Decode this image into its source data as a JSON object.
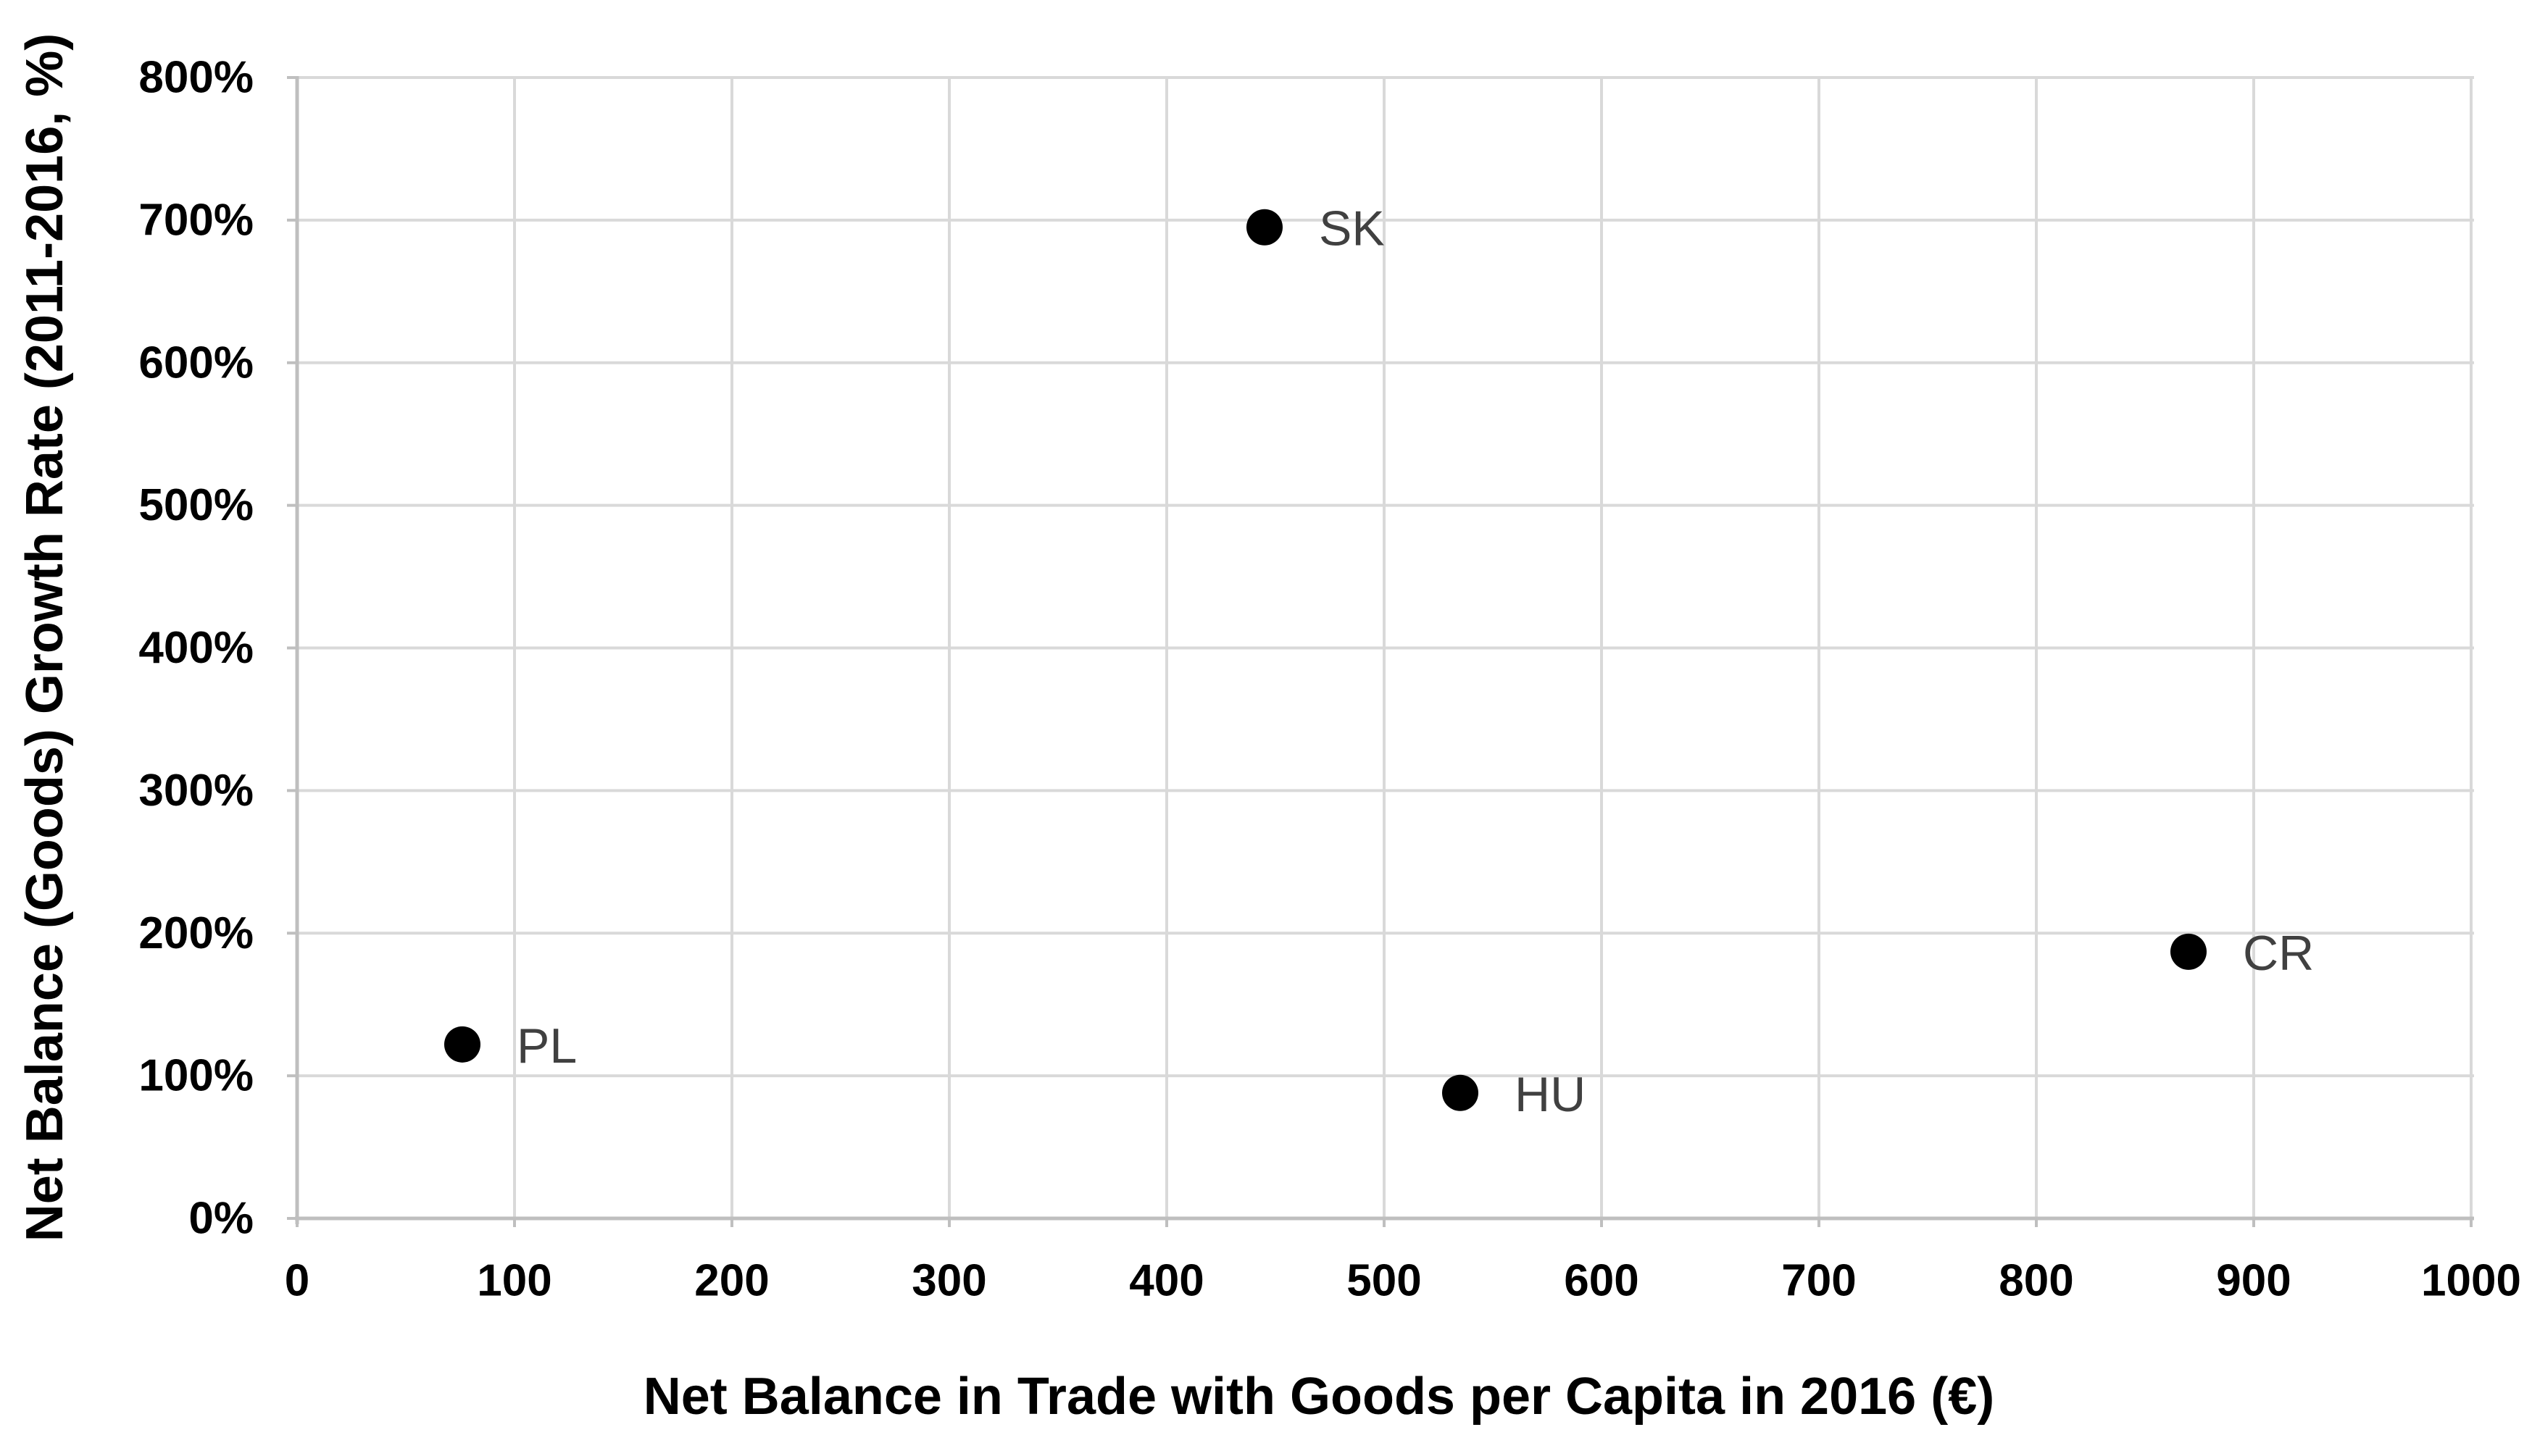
{
  "chart_data": {
    "type": "scatter",
    "xlabel": "Net Balance in Trade with Goods per Capita in 2016 (€)",
    "ylabel": "Net Balance (Goods) Growth Rate (2011-2016, %)",
    "xlim": [
      0,
      1000
    ],
    "ylim_pct": [
      0,
      800
    ],
    "x_ticks": [
      0,
      100,
      200,
      300,
      400,
      500,
      600,
      700,
      800,
      900,
      1000
    ],
    "x_tick_labels": [
      "0",
      "100",
      "200",
      "300",
      "400",
      "500",
      "600",
      "700",
      "800",
      "900",
      "1000"
    ],
    "y_ticks_pct": [
      0,
      100,
      200,
      300,
      400,
      500,
      600,
      700,
      800
    ],
    "y_tick_labels": [
      "0%",
      "100%",
      "200%",
      "300%",
      "400%",
      "500%",
      "600%",
      "700%",
      "800%"
    ],
    "grid": true,
    "legend_position": "none",
    "points": [
      {
        "label": "SK",
        "x": 445,
        "y_pct": 695
      },
      {
        "label": "PL",
        "x": 76,
        "y_pct": 122
      },
      {
        "label": "HU",
        "x": 535,
        "y_pct": 88
      },
      {
        "label": "CR",
        "x": 870,
        "y_pct": 187
      }
    ],
    "colors": {
      "point": "#000000",
      "point_label": "#404040",
      "gridline": "#D9D9D9",
      "axis_line": "#BFBFBF",
      "tick_label": "#000000",
      "axis_title": "#000000",
      "background": "#FFFFFF"
    }
  }
}
